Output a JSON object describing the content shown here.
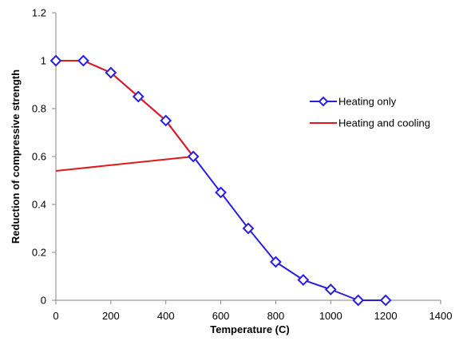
{
  "chart_data": {
    "type": "line",
    "title": "",
    "xlabel": "Temperature (C)",
    "ylabel": "Reduction of compressive strength",
    "xlim": [
      0,
      1400
    ],
    "ylim": [
      0,
      1.2
    ],
    "x_ticks": [
      0,
      200,
      400,
      600,
      800,
      1000,
      1200,
      1400
    ],
    "y_ticks": [
      0,
      0.2,
      0.4,
      0.6,
      0.8,
      1,
      1.2
    ],
    "x_tick_labels": [
      "0",
      "200",
      "400",
      "600",
      "800",
      "1000",
      "1200",
      "1400"
    ],
    "y_tick_labels": [
      "0",
      "0.2",
      "0.4",
      "0.6",
      "0.8",
      "1",
      "1.2"
    ],
    "grid": false,
    "legend_position": "right",
    "series": [
      {
        "name": "Heating only",
        "color": "#2a1fe0",
        "marker": "diamond",
        "x": [
          0,
          100,
          200,
          300,
          400,
          500,
          600,
          700,
          800,
          900,
          1000,
          1100,
          1200
        ],
        "y": [
          1.0,
          1.0,
          0.95,
          0.85,
          0.75,
          0.6,
          0.45,
          0.3,
          0.16,
          0.085,
          0.045,
          0.0,
          0.0
        ]
      },
      {
        "name": "Heating and cooling",
        "color": "#e01a1a",
        "marker": "none",
        "x": [
          0,
          100,
          200,
          300,
          400,
          500,
          0
        ],
        "y": [
          1.0,
          1.0,
          0.95,
          0.85,
          0.75,
          0.6,
          0.54
        ]
      }
    ]
  }
}
